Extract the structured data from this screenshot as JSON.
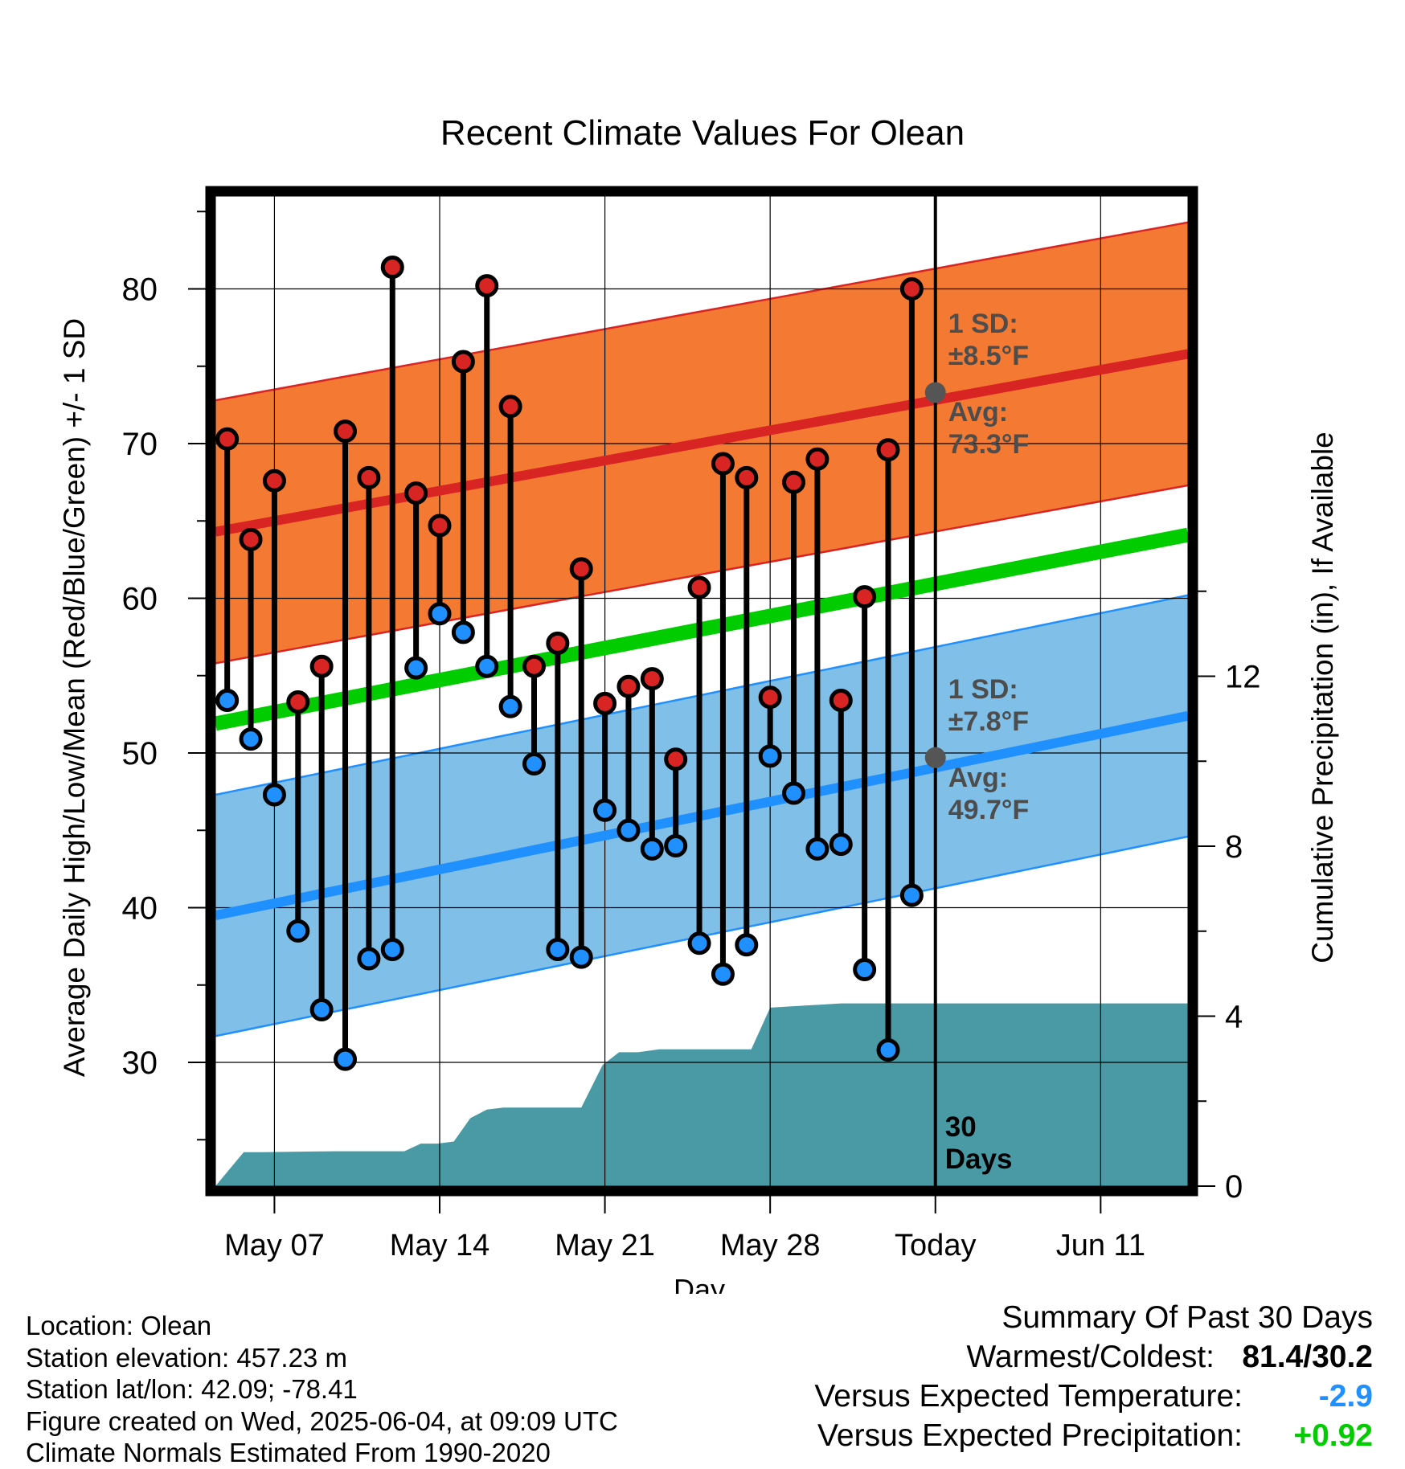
{
  "chart_data": {
    "type": "line",
    "title": "Recent Climate Values For Olean",
    "xlabel": "Day",
    "ylabel": "Average Daily High/Low/Mean (Red/Blue/Green) +/- 1 SD",
    "y2label": "Cumulative Precipitation (in), If Available",
    "ylim": [
      22,
      86
    ],
    "y2lim": [
      0,
      23.3
    ],
    "xlim": [
      -0.5,
      40.7
    ],
    "x_ticks": [
      {
        "x": 2,
        "label": "May 07"
      },
      {
        "x": 9,
        "label": "May 14"
      },
      {
        "x": 16,
        "label": "May 21"
      },
      {
        "x": 23,
        "label": "May 28"
      },
      {
        "x": 30,
        "label": "Today"
      },
      {
        "x": 37,
        "label": "Jun 11"
      }
    ],
    "y_ticks": [
      30,
      40,
      50,
      60,
      70,
      80
    ],
    "y2_ticks": [
      0,
      4,
      8,
      12
    ],
    "today_x": 30,
    "window_label": [
      "30",
      "Days"
    ],
    "high_avg": {
      "start": 64.3,
      "end": 75.8
    },
    "high_sd": 8.5,
    "low_avg": {
      "start": 39.5,
      "end": 52.4
    },
    "low_sd": 7.8,
    "mean_avg": {
      "start": 51.9,
      "end": 64.1
    },
    "high_annotation": {
      "sd_label": "1 SD:",
      "sd_value": "±8.5°F",
      "avg_label": "Avg:",
      "avg_value": "73.3°F",
      "avg": 73.3
    },
    "low_annotation": {
      "sd_label": "1 SD:",
      "sd_value": "±7.8°F",
      "avg_label": "Avg:",
      "avg_value": "49.7°F",
      "avg": 49.7
    },
    "highs": [
      70.3,
      63.8,
      67.6,
      53.3,
      55.6,
      70.8,
      67.8,
      81.4,
      66.8,
      64.7,
      75.3,
      80.2,
      72.4,
      55.6,
      57.1,
      61.9,
      53.2,
      54.3,
      54.8,
      49.6,
      60.7,
      68.7,
      67.8,
      53.6,
      67.5,
      69.0,
      53.4,
      60.1,
      69.6,
      80.0
    ],
    "lows": [
      53.4,
      50.9,
      47.3,
      38.5,
      33.4,
      30.2,
      36.7,
      37.3,
      55.5,
      59.0,
      57.8,
      55.6,
      53.0,
      49.3,
      37.3,
      36.8,
      46.3,
      45.0,
      43.8,
      44.0,
      37.7,
      35.7,
      37.6,
      49.8,
      47.4,
      43.8,
      44.1,
      36.0,
      30.8,
      40.8
    ],
    "precip_cumulative": [
      [
        -0.5,
        0
      ],
      [
        0.7,
        0.8
      ],
      [
        1.5,
        0.8
      ],
      [
        4.5,
        0.82
      ],
      [
        7.5,
        0.82
      ],
      [
        8.2,
        1.0
      ],
      [
        8.9,
        1.0
      ],
      [
        9.6,
        1.05
      ],
      [
        10.3,
        1.6
      ],
      [
        11.0,
        1.8
      ],
      [
        11.7,
        1.85
      ],
      [
        15.0,
        1.85
      ],
      [
        15.9,
        2.85
      ],
      [
        16.6,
        3.15
      ],
      [
        17.4,
        3.15
      ],
      [
        18.3,
        3.22
      ],
      [
        22.2,
        3.22
      ],
      [
        23.0,
        4.2
      ],
      [
        24.5,
        4.25
      ],
      [
        26.0,
        4.3
      ],
      [
        40.7,
        4.3
      ]
    ],
    "colors": {
      "high": "#d92424",
      "high_band": "#f47a33",
      "low": "#2190ff",
      "low_band": "#80bfe8",
      "mean": "#00cc00",
      "precip": "#4a9aa5",
      "annotation": "#4d4d4d"
    }
  },
  "footer": {
    "location": "Location: Olean",
    "elevation": "Station elevation: 457.23 m",
    "latlon": "Station lat/lon: 42.09; -78.41",
    "created": "Figure created on Wed, 2025-06-04, at 09:09 UTC",
    "normals": "Climate Normals Estimated From 1990-2020"
  },
  "summary": {
    "title": "Summary Of Past 30 Days",
    "warmest_label": "Warmest/Coldest:",
    "warmest_value": "81.4/30.2",
    "temp_label": "Versus Expected Temperature:",
    "temp_value": "-2.9",
    "temp_color": "#2190ff",
    "precip_label": "Versus Expected Precipitation:",
    "precip_value": "+0.92",
    "precip_color": "#00cc00"
  }
}
